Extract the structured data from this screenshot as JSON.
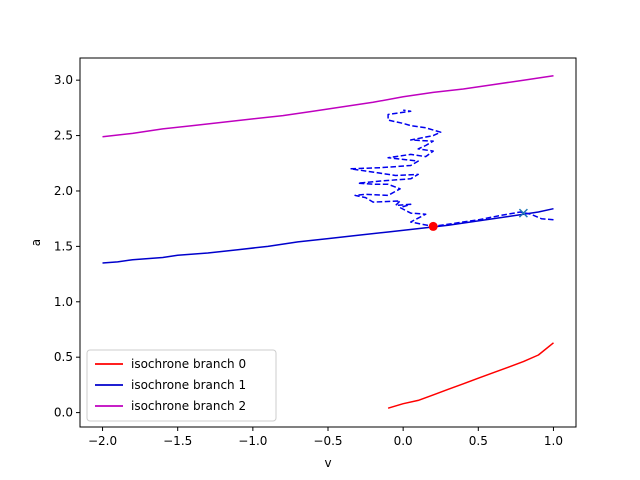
{
  "chart_data": {
    "type": "line",
    "xlabel": "v",
    "ylabel": "a",
    "xlim": [
      -2.15,
      1.15
    ],
    "ylim": [
      -0.13,
      3.2
    ],
    "xticks": [
      -2.0,
      -1.5,
      -1.0,
      -0.5,
      0.0,
      0.5,
      1.0
    ],
    "xtick_labels": [
      "−2.0",
      "−1.5",
      "−1.0",
      "−0.5",
      "0.0",
      "0.5",
      "1.0"
    ],
    "yticks": [
      0.0,
      0.5,
      1.0,
      1.5,
      2.0,
      2.5,
      3.0
    ],
    "ytick_labels": [
      "0.0",
      "0.5",
      "1.0",
      "1.5",
      "2.0",
      "2.5",
      "3.0"
    ],
    "grid": false,
    "legend_position": "lower-left",
    "series": [
      {
        "name": "isochrone branch 0",
        "color": "#ff0000",
        "style": "solid",
        "points": [
          [
            -0.1,
            0.04
          ],
          [
            0.0,
            0.08
          ],
          [
            0.1,
            0.11
          ],
          [
            0.2,
            0.16
          ],
          [
            0.3,
            0.21
          ],
          [
            0.4,
            0.26
          ],
          [
            0.5,
            0.31
          ],
          [
            0.6,
            0.36
          ],
          [
            0.7,
            0.41
          ],
          [
            0.8,
            0.46
          ],
          [
            0.9,
            0.52
          ],
          [
            1.0,
            0.63
          ]
        ]
      },
      {
        "name": "isochrone branch 1",
        "color": "#0000cc",
        "style": "solid",
        "points": [
          [
            -2.0,
            1.35
          ],
          [
            -1.9,
            1.36
          ],
          [
            -1.8,
            1.38
          ],
          [
            -1.6,
            1.4
          ],
          [
            -1.5,
            1.42
          ],
          [
            -1.3,
            1.44
          ],
          [
            -1.1,
            1.47
          ],
          [
            -0.9,
            1.5
          ],
          [
            -0.7,
            1.54
          ],
          [
            -0.5,
            1.57
          ],
          [
            -0.3,
            1.6
          ],
          [
            -0.1,
            1.63
          ],
          [
            0.1,
            1.66
          ],
          [
            0.3,
            1.69
          ],
          [
            0.5,
            1.73
          ],
          [
            0.7,
            1.77
          ],
          [
            0.9,
            1.81
          ],
          [
            1.0,
            1.84
          ]
        ]
      },
      {
        "name": "isochrone branch 2",
        "color": "#bf00bf",
        "style": "solid",
        "points": [
          [
            -2.0,
            2.49
          ],
          [
            -1.8,
            2.52
          ],
          [
            -1.6,
            2.56
          ],
          [
            -1.4,
            2.59
          ],
          [
            -1.2,
            2.62
          ],
          [
            -1.0,
            2.65
          ],
          [
            -0.8,
            2.68
          ],
          [
            -0.6,
            2.72
          ],
          [
            -0.4,
            2.76
          ],
          [
            -0.2,
            2.8
          ],
          [
            0.0,
            2.85
          ],
          [
            0.2,
            2.89
          ],
          [
            0.4,
            2.92
          ],
          [
            0.6,
            2.96
          ],
          [
            0.8,
            3.0
          ],
          [
            1.0,
            3.04
          ]
        ]
      },
      {
        "color": "#0000ee",
        "style": "dashed",
        "points": [
          [
            1.0,
            1.74
          ],
          [
            0.92,
            1.75
          ],
          [
            0.85,
            1.79
          ],
          [
            0.78,
            1.81
          ],
          [
            0.65,
            1.78
          ],
          [
            0.5,
            1.74
          ],
          [
            0.35,
            1.71
          ],
          [
            0.2,
            1.68
          ],
          [
            0.05,
            1.72
          ],
          [
            0.15,
            1.79
          ],
          [
            0.05,
            1.8
          ],
          [
            -0.02,
            1.85
          ],
          [
            0.05,
            1.88
          ],
          [
            -0.05,
            1.87
          ],
          [
            -0.02,
            1.91
          ],
          [
            -0.2,
            1.9
          ],
          [
            -0.25,
            1.94
          ],
          [
            -0.32,
            1.96
          ],
          [
            -0.25,
            1.97
          ],
          [
            -0.1,
            1.96
          ],
          [
            -0.02,
            2.02
          ],
          [
            -0.1,
            2.06
          ],
          [
            -0.18,
            2.06
          ],
          [
            -0.3,
            2.07
          ],
          [
            -0.15,
            2.09
          ],
          [
            0.05,
            2.11
          ],
          [
            0.1,
            2.15
          ],
          [
            -0.05,
            2.14
          ],
          [
            -0.2,
            2.17
          ],
          [
            -0.35,
            2.2
          ],
          [
            -0.15,
            2.21
          ],
          [
            0.05,
            2.23
          ],
          [
            0.1,
            2.27
          ],
          [
            -0.1,
            2.3
          ],
          [
            0.05,
            2.33
          ],
          [
            0.15,
            2.31
          ],
          [
            0.2,
            2.36
          ],
          [
            0.1,
            2.38
          ],
          [
            0.15,
            2.41
          ],
          [
            0.2,
            2.45
          ],
          [
            0.05,
            2.46
          ],
          [
            0.2,
            2.5
          ],
          [
            0.25,
            2.53
          ],
          [
            0.15,
            2.57
          ],
          [
            0.05,
            2.59
          ],
          [
            0.0,
            2.61
          ],
          [
            -0.1,
            2.64
          ],
          [
            -0.1,
            2.69
          ],
          [
            0.05,
            2.72
          ],
          [
            0.0,
            2.73
          ]
        ]
      }
    ],
    "markers": [
      {
        "symbol": "circle",
        "color": "#ff0000",
        "x": 0.2,
        "y": 1.68
      },
      {
        "symbol": "x",
        "color": "#1f77b4",
        "x": 0.8,
        "y": 1.8
      }
    ]
  }
}
